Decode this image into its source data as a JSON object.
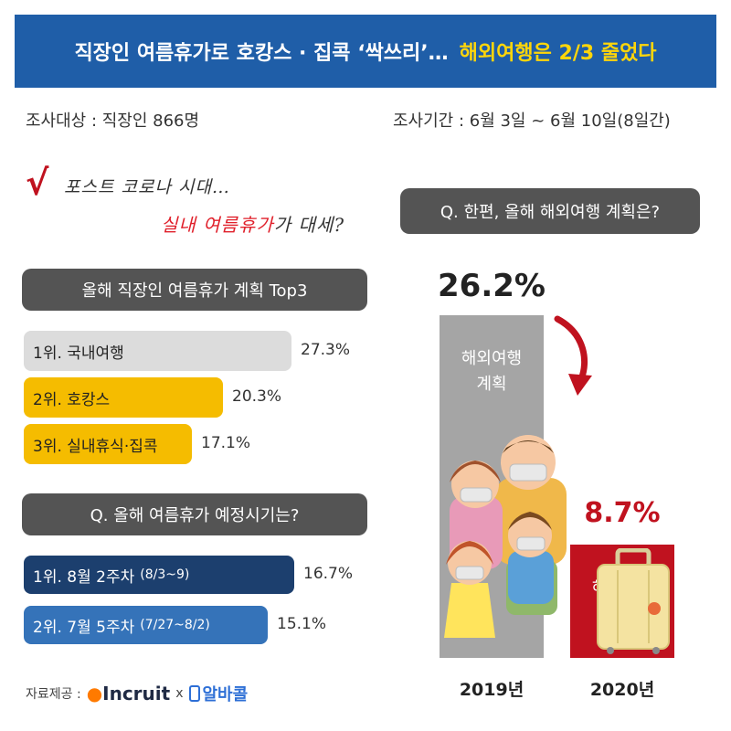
{
  "header": {
    "title_main": "직장인 여름휴가로 호캉스 · 집콕 ‘싹쓰리’…",
    "title_highlight": "해외여행은 2/3 줄었다"
  },
  "survey": {
    "target": "조사대상 : 직장인 866명",
    "period": "조사기간 : 6월 3일 ~ 6월 10일(8일간)"
  },
  "handwriting": {
    "line1": "포스트 코로나 시대…",
    "line2_red": "실내 여름휴가",
    "line2_black": "가 대세?"
  },
  "section_top3": {
    "title": "올해 직장인 여름휴가 계획 Top3",
    "items": [
      {
        "label": "1위. 국내여행",
        "value_label": "27.3%",
        "value": 27.3,
        "color": "#dcdcdc",
        "text_color": "#222"
      },
      {
        "label": "2위. 호캉스",
        "value_label": "20.3%",
        "value": 20.3,
        "color": "#f5bc00",
        "text_color": "#222"
      },
      {
        "label": "3위. 실내휴식·집콕",
        "value_label": "17.1%",
        "value": 17.1,
        "color": "#f5bc00",
        "text_color": "#222"
      }
    ]
  },
  "section_timing": {
    "title": "Q. 올해 여름휴가 예정시기는?",
    "items": [
      {
        "label": "1위. 8월 2주차",
        "sub": "(8/3~9)",
        "value_label": "16.7%",
        "value": 16.7,
        "color": "#1c3f6e",
        "text_color": "#ffffff"
      },
      {
        "label": "2위. 7월 5주차",
        "sub": "(7/27~8/2)",
        "value_label": "15.1%",
        "value": 15.1,
        "color": "#3573b9",
        "text_color": "#ffffff"
      }
    ]
  },
  "section_overseas": {
    "title": "Q. 한편, 올해 해외여행 계획은?",
    "bars": [
      {
        "year": "2019년",
        "value_label": "26.2%",
        "value": 26.2,
        "bar_label": "해외여행\n계획",
        "color": "#a5a5a5",
        "pct_color": "#222222"
      },
      {
        "year": "2020년",
        "value_label": "8.7%",
        "value": 8.7,
        "bar_label": "해외여행\n계획",
        "color": "#c0121f",
        "pct_color": "#c0121f"
      }
    ]
  },
  "credit": {
    "label": "자료제공 :",
    "logo1": "Incruit",
    "separator": "x",
    "logo2": "알바콜"
  },
  "chart_data": [
    {
      "type": "bar",
      "title": "올해 직장인 여름휴가 계획 Top3",
      "categories": [
        "1위. 국내여행",
        "2위. 호캉스",
        "3위. 실내휴식·집콕"
      ],
      "values": [
        27.3,
        20.3,
        17.1
      ]
    },
    {
      "type": "bar",
      "title": "Q. 올해 여름휴가 예정시기는?",
      "categories": [
        "1위. 8월 2주차 (8/3~9)",
        "2위. 7월 5주차 (7/27~8/2)"
      ],
      "values": [
        16.7,
        15.1
      ]
    },
    {
      "type": "bar",
      "title": "Q. 한편, 올해 해외여행 계획은?",
      "categories": [
        "2019년",
        "2020년"
      ],
      "values": [
        26.2,
        8.7
      ]
    }
  ],
  "colors": {
    "header_bg": "#1f5ea8",
    "highlight": "#ffd60a",
    "pill_bg": "#545454",
    "accent_red": "#c0121f"
  }
}
